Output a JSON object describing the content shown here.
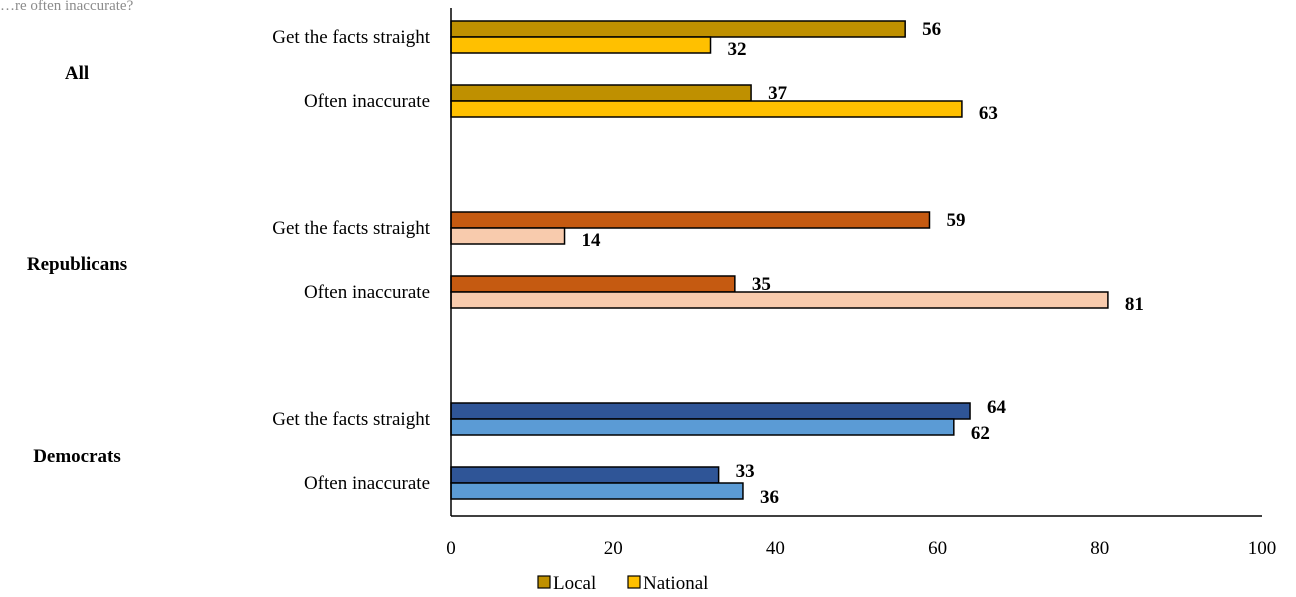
{
  "chart_data": {
    "type": "bar",
    "orientation": "horizontal",
    "title": "…re often inaccurate?",
    "xlim": [
      0,
      100
    ],
    "x_ticks": [
      "0",
      "20",
      "40",
      "60",
      "80",
      "100"
    ],
    "groups": [
      {
        "name": "All",
        "colors": {
          "local": "#bf9000",
          "national": "#ffc000"
        },
        "items": [
          {
            "label": "Get the facts straight",
            "local": 56,
            "national": 32
          },
          {
            "label": "Often inaccurate",
            "local": 37,
            "national": 63
          }
        ]
      },
      {
        "name": "Republicans",
        "colors": {
          "local": "#c55a11",
          "national": "#f8cbad"
        },
        "items": [
          {
            "label": "Get the facts straight",
            "local": 59,
            "national": 14
          },
          {
            "label": "Often inaccurate",
            "local": 35,
            "national": 81
          }
        ]
      },
      {
        "name": "Democrats",
        "colors": {
          "local": "#2f5597",
          "national": "#5b9bd5"
        },
        "items": [
          {
            "label": "Get the facts straight",
            "local": 64,
            "national": 62
          },
          {
            "label": "Often inaccurate",
            "local": 33,
            "national": 36
          }
        ]
      }
    ],
    "legend": {
      "placement": "bottom",
      "items": [
        {
          "name": "Local",
          "color": "#bf9000"
        },
        {
          "name": "National",
          "color": "#ffc000"
        }
      ]
    }
  }
}
